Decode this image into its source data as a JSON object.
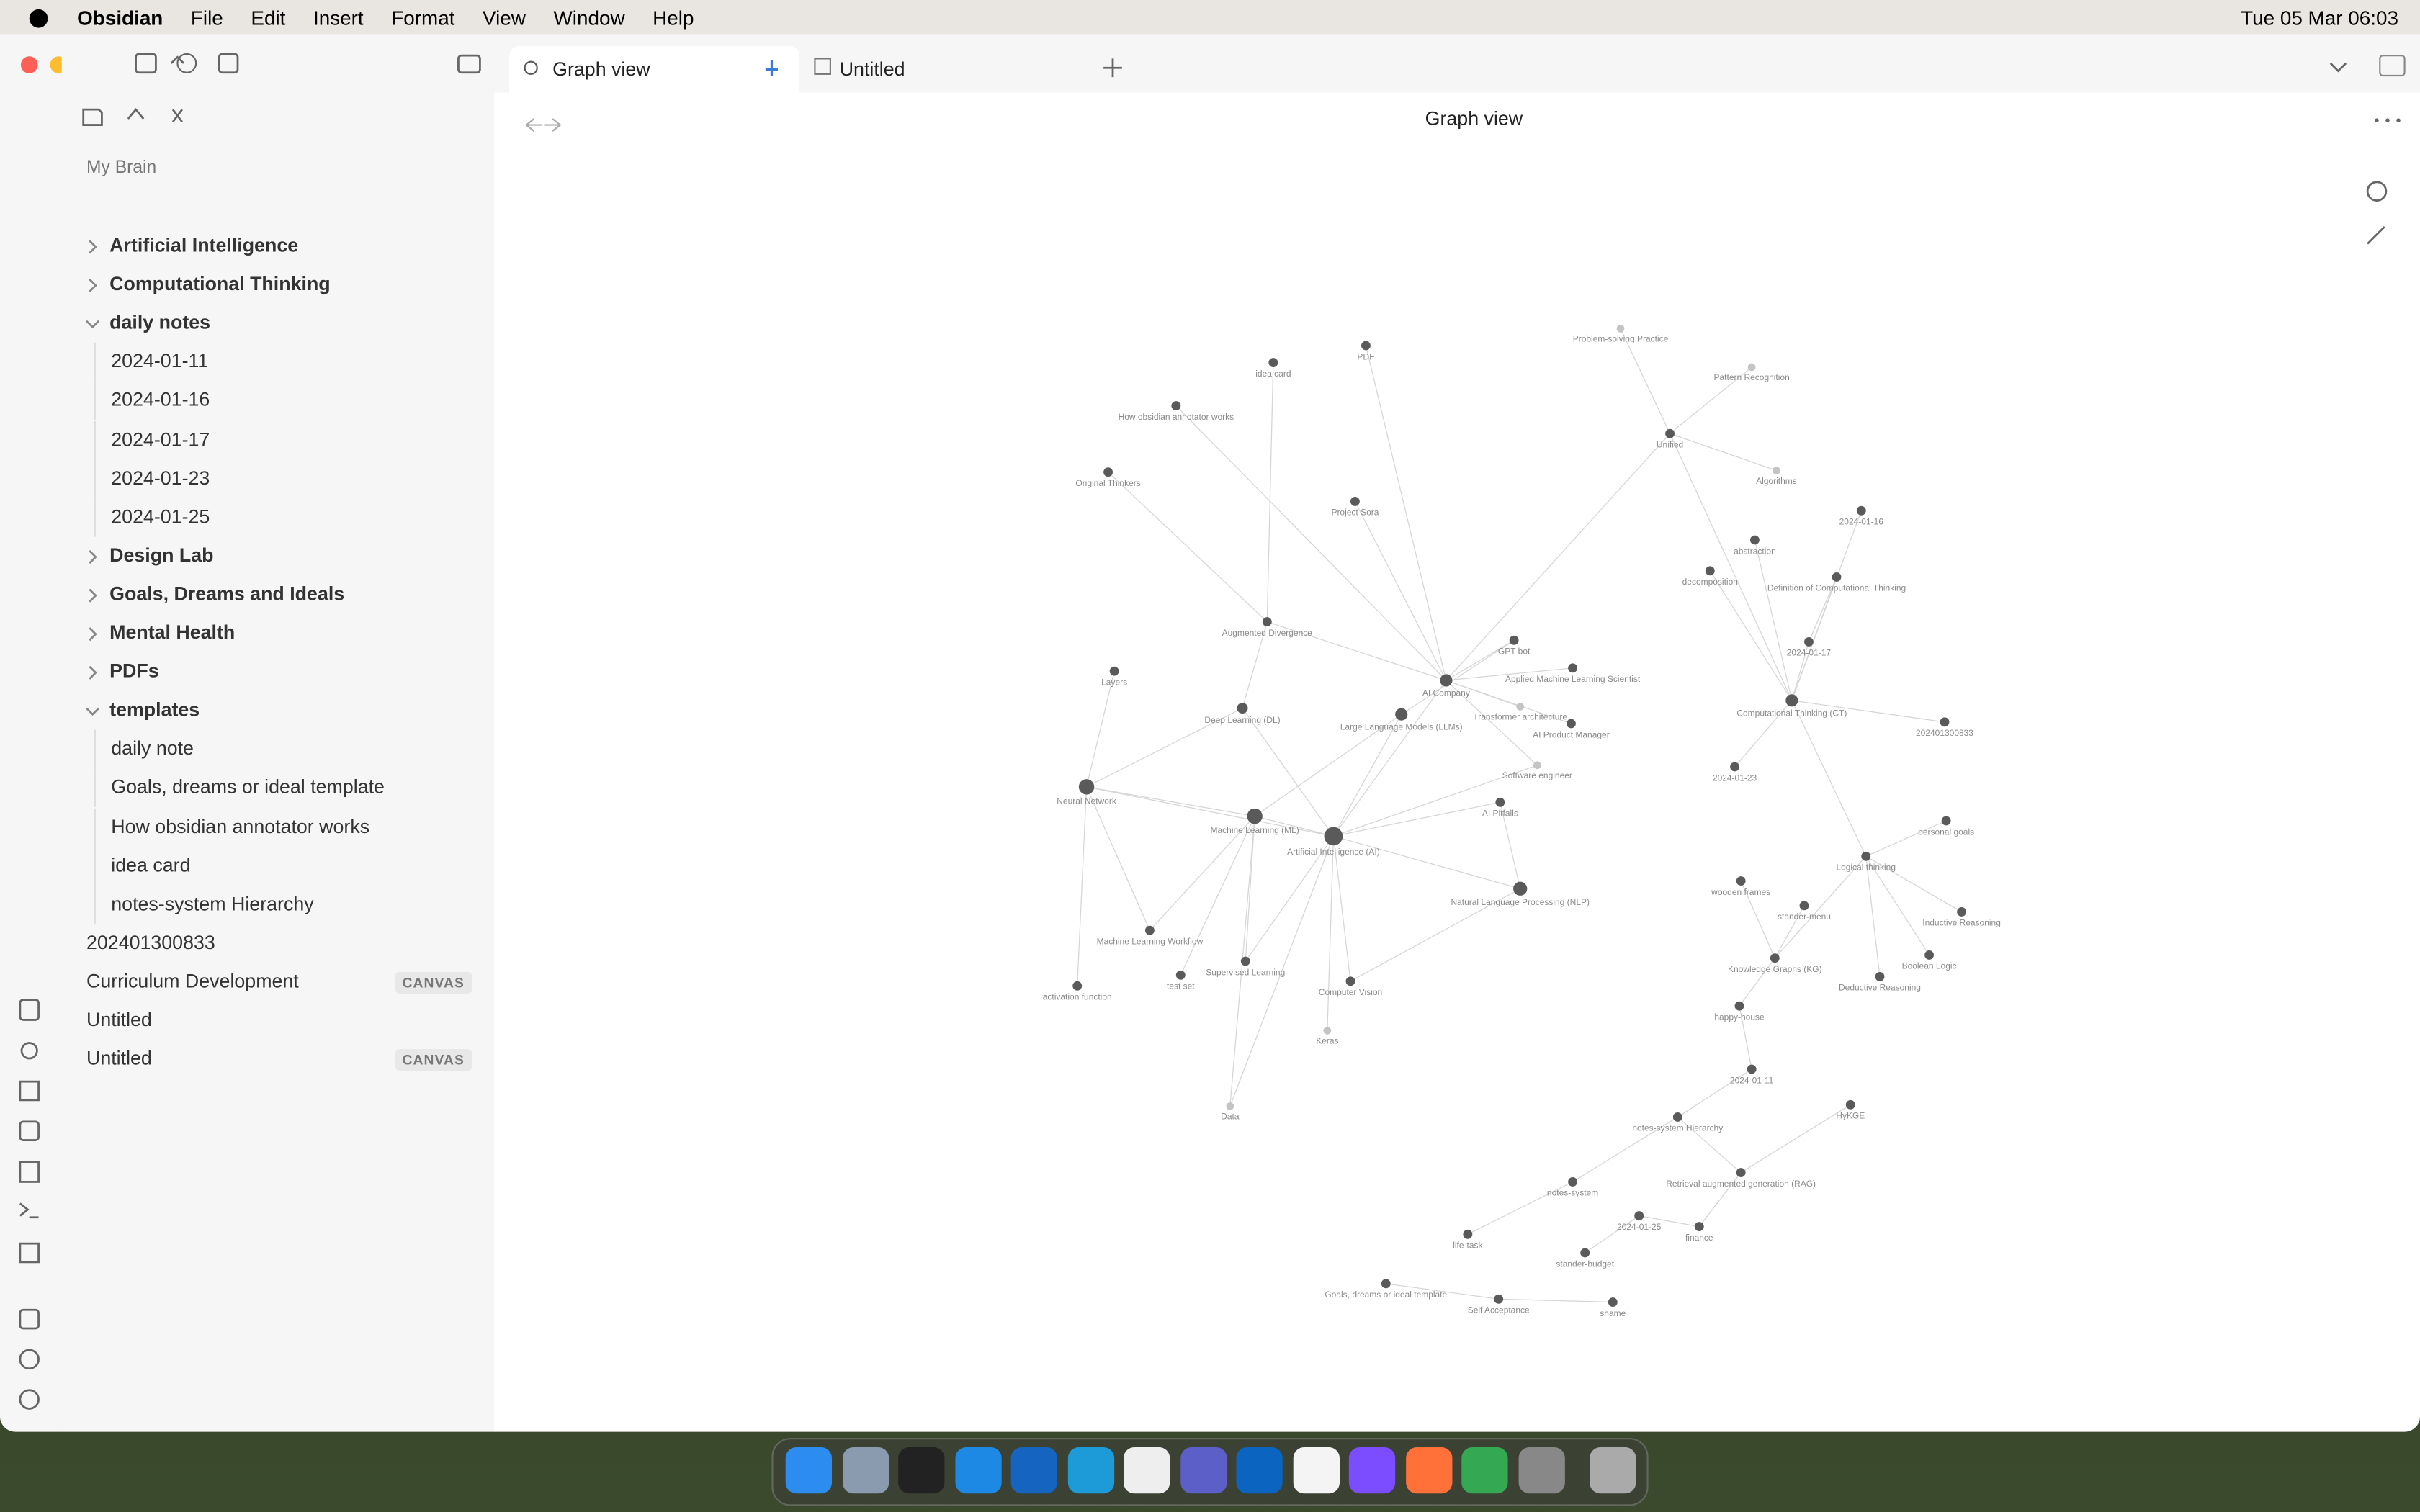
{
  "menubar": {
    "app": "Obsidian",
    "items": [
      "File",
      "Edit",
      "Insert",
      "Format",
      "View",
      "Window",
      "Help"
    ],
    "clock": "Tue 05 Mar  06:03"
  },
  "tabs": [
    "Graph view",
    "Untitled"
  ],
  "header": {
    "title": "Graph view"
  },
  "sidebar": {
    "vault": "My Brain",
    "items": [
      {
        "label": "Artificial Intelligence",
        "kind": "folder",
        "open": false,
        "depth": 0
      },
      {
        "label": "Computational Thinking",
        "kind": "folder",
        "open": false,
        "depth": 0
      },
      {
        "label": "daily notes",
        "kind": "folder",
        "open": true,
        "depth": 0
      },
      {
        "label": "2024-01-11",
        "kind": "file",
        "depth": 1
      },
      {
        "label": "2024-01-16",
        "kind": "file",
        "depth": 1
      },
      {
        "label": "2024-01-17",
        "kind": "file",
        "depth": 1
      },
      {
        "label": "2024-01-23",
        "kind": "file",
        "depth": 1
      },
      {
        "label": "2024-01-25",
        "kind": "file",
        "depth": 1
      },
      {
        "label": "Design Lab",
        "kind": "folder",
        "open": false,
        "depth": 0
      },
      {
        "label": "Goals, Dreams and Ideals",
        "kind": "folder",
        "open": false,
        "depth": 0
      },
      {
        "label": "Mental Health",
        "kind": "folder",
        "open": false,
        "depth": 0
      },
      {
        "label": "PDFs",
        "kind": "folder",
        "open": false,
        "depth": 0
      },
      {
        "label": "templates",
        "kind": "folder",
        "open": true,
        "depth": 0
      },
      {
        "label": "daily note",
        "kind": "file",
        "depth": 1
      },
      {
        "label": "Goals, dreams or ideal template",
        "kind": "file",
        "depth": 1
      },
      {
        "label": "How obsidian annotator works",
        "kind": "file",
        "depth": 1
      },
      {
        "label": "idea card",
        "kind": "file",
        "depth": 1
      },
      {
        "label": "notes-system Hierarchy",
        "kind": "file",
        "depth": 1
      },
      {
        "label": "202401300833",
        "kind": "file",
        "depth": 0
      },
      {
        "label": "Curriculum Development",
        "kind": "file",
        "depth": 0,
        "badge": "CANVAS"
      },
      {
        "label": "Untitled",
        "kind": "file",
        "depth": 0
      },
      {
        "label": "Untitled",
        "kind": "file",
        "depth": 0,
        "badge": "CANVAS"
      }
    ]
  },
  "graph": {
    "nodes": [
      "Artificial Intelligence (AI)",
      "Neural Network",
      "Machine Learning (ML)",
      "AI Company",
      "Computational Thinking (CT)",
      "Deep Learning (DL)",
      "Augmented Divergence",
      "Unified",
      "2024-01-16",
      "2024-01-17",
      "2024-01-23",
      "2024-01-11",
      "2024-01-25",
      "202401300833",
      "idea card",
      "PDF",
      "How obsidian annotator works",
      "Original Thinkers",
      "Project Sora",
      "Logical thinking",
      "personal goals",
      "Knowledge Graphs (KG)",
      "happy-house",
      "notes-system Hierarchy",
      "notes-system",
      "life-task",
      "Goals, dreams or ideal template",
      "Self Acceptance",
      "shame",
      "stander-budget",
      "finance",
      "HyKGE",
      "Retrieval augmented generation (RAG)",
      "Layers",
      "activation function",
      "Data",
      "Keras",
      "Computer Vision",
      "test set",
      "Supervised Learning",
      "Machine Learning Workflow",
      "AI Pitfalls",
      "Software engineer",
      "Applied Machine Learning Scientist",
      "GPT bot",
      "Transformer architecture",
      "AI Product Manager",
      "Deductive Reasoning",
      "Inductive Reasoning",
      "Boolean Logic",
      "Problem-solving Practice",
      "Pattern Recognition",
      "Algorithms",
      "abstraction",
      "decomposition",
      "Definition of Computational Thinking",
      "Large Language Models (LLMs)",
      "wooden frames",
      "stander-menu",
      "Natural Language Processing (NLP)"
    ]
  }
}
